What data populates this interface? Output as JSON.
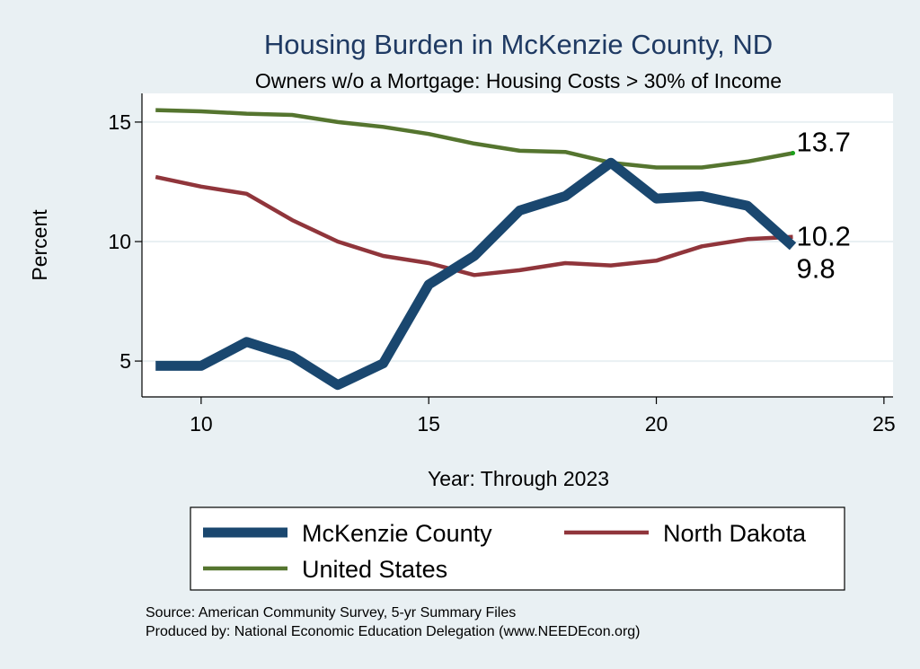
{
  "chart_data": {
    "type": "line",
    "title": "Housing Burden in McKenzie County, ND",
    "subtitle": "Owners w/o a Mortgage: Housing Costs > 30% of Income",
    "xlabel": "Year: Through 2023",
    "ylabel": "Percent",
    "xlim": [
      8.7,
      25.2
    ],
    "ylim": [
      3.5,
      16.2
    ],
    "x_ticks": [
      10,
      15,
      20,
      25
    ],
    "y_ticks": [
      5,
      10,
      15
    ],
    "grid": true,
    "x": [
      9,
      10,
      11,
      12,
      13,
      14,
      15,
      16,
      17,
      18,
      19,
      20,
      21,
      22,
      23
    ],
    "series": [
      {
        "name": "McKenzie County",
        "color": "#1a476f",
        "values": [
          4.8,
          4.8,
          5.8,
          5.2,
          4.0,
          4.9,
          8.2,
          9.4,
          11.3,
          11.9,
          13.3,
          11.8,
          11.9,
          11.5,
          9.8
        ],
        "end_label": "9.8"
      },
      {
        "name": "North Dakota",
        "color": "#90353b",
        "values": [
          12.7,
          12.3,
          12.0,
          10.9,
          10.0,
          9.4,
          9.1,
          8.6,
          8.8,
          9.1,
          9.0,
          9.2,
          9.8,
          10.1,
          10.2
        ],
        "end_label": "10.2"
      },
      {
        "name": "United States",
        "color": "#55752f",
        "values": [
          15.5,
          15.45,
          15.35,
          15.3,
          15.0,
          14.8,
          14.5,
          14.1,
          13.8,
          13.75,
          13.3,
          13.1,
          13.1,
          13.35,
          13.7
        ],
        "end_label": "13.7"
      }
    ],
    "legend": {
      "placement": "bottom",
      "entries": [
        "McKenzie County",
        "North Dakota",
        "United States"
      ]
    }
  },
  "notes": {
    "source": "Source: American Community Survey, 5-yr Summary Files",
    "produced_by": "Produced by: National Economic Education Delegation (www.NEEDEcon.org)"
  }
}
